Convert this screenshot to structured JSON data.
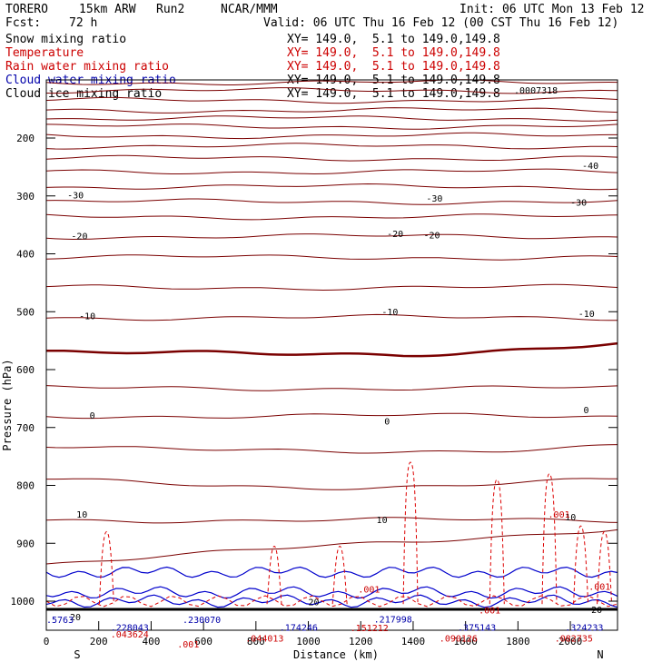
{
  "header": {
    "model": "TORERO",
    "resolution": "15km ARW",
    "run": "Run2",
    "org": "NCAR/MMM",
    "init": "Init: 06 UTC Mon 13 Feb 12",
    "fcst_label": "Fcst:",
    "fcst_value": "72 h",
    "valid": "Valid: 06 UTC Thu 16 Feb 12 (00 CST Thu 16 Feb 12)"
  },
  "fields": [
    {
      "name": "Snow mixing ratio",
      "xy": "XY= 149.0,  5.1 to 149.0,149.8",
      "color": "#000000"
    },
    {
      "name": "Temperature",
      "xy": "XY= 149.0,  5.1 to 149.0,149.8",
      "color": "#cc0000"
    },
    {
      "name": "Rain water mixing ratio",
      "xy": "XY= 149.0,  5.1 to 149.0,149.8",
      "color": "#cc0000"
    },
    {
      "name": "Cloud water mixing ratio",
      "xy": "XY= 149.0,  5.1 to 149.0,149.8",
      "color": "#0000aa"
    },
    {
      "name": "Cloud ice mixing ratio",
      "xy": "XY= 149.0,  5.1 to 149.0,149.8",
      "color": "#000000"
    }
  ],
  "chart_data": {
    "type": "cross-section",
    "xlabel": "Distance (km)",
    "ylabel": "Pressure (hPa)",
    "xlim": [
      0,
      2180
    ],
    "ylim": [
      100,
      1050
    ],
    "x_ticks": [
      0,
      200,
      400,
      600,
      800,
      1000,
      1200,
      1400,
      1600,
      1800,
      2000
    ],
    "y_ticks": [
      200,
      300,
      400,
      500,
      600,
      700,
      800,
      900,
      1000
    ],
    "left_end_label": "S",
    "right_end_label": "N",
    "temperature_contour_labels": [
      {
        "text": "-40",
        "x": 2045,
        "p": 253
      },
      {
        "text": "-30",
        "x": 80,
        "p": 304
      },
      {
        "text": "-30",
        "x": 1450,
        "p": 310
      },
      {
        "text": "-30",
        "x": 2000,
        "p": 317
      },
      {
        "text": "-20",
        "x": 95,
        "p": 375
      },
      {
        "text": "-20",
        "x": 1300,
        "p": 371
      },
      {
        "text": "-20",
        "x": 1440,
        "p": 373
      },
      {
        "text": "-10",
        "x": 125,
        "p": 513
      },
      {
        "text": "-10",
        "x": 1280,
        "p": 506
      },
      {
        "text": "-10",
        "x": 2030,
        "p": 509
      },
      {
        "text": "0",
        "x": 165,
        "p": 685
      },
      {
        "text": "0",
        "x": 1290,
        "p": 695
      },
      {
        "text": "0",
        "x": 2050,
        "p": 675
      },
      {
        "text": "10",
        "x": 115,
        "p": 856
      },
      {
        "text": "10",
        "x": 1260,
        "p": 865
      },
      {
        "text": "10",
        "x": 1980,
        "p": 860
      },
      {
        "text": "20",
        "x": 1000,
        "p": 1007
      },
      {
        "text": "20",
        "x": 2080,
        "p": 1020
      },
      {
        "text": "20",
        "x": 90,
        "p": 1033
      }
    ],
    "rain_labels": [
      {
        "text": ".001",
        "x": 1190,
        "p": 985
      },
      {
        "text": ".001",
        "x": 1650,
        "p": 1021
      },
      {
        "text": ".001",
        "x": 1915,
        "p": 856
      },
      {
        "text": ".001",
        "x": 2070,
        "p": 980
      },
      {
        "text": ".001",
        "x": 500,
        "p": 1080
      }
    ],
    "cloud_water_labels": [
      {
        "text": ".5763",
        "x": 0,
        "p": 1038
      },
      {
        "text": ".228043",
        "x": 245,
        "p": 1051
      },
      {
        "text": ".230070",
        "x": 520,
        "p": 1038
      },
      {
        "text": ".174246",
        "x": 890,
        "p": 1051
      },
      {
        "text": ".217998",
        "x": 1250,
        "p": 1037
      },
      {
        "text": ".375143",
        "x": 1570,
        "p": 1051
      },
      {
        "text": ".324233",
        "x": 1980,
        "p": 1051
      }
    ],
    "rain_value_labels": [
      {
        "text": ".043624",
        "x": 245,
        "p": 1063
      },
      {
        "text": ".044013",
        "x": 760,
        "p": 1070
      },
      {
        "text": ".151212",
        "x": 1160,
        "p": 1052
      },
      {
        "text": ".090126",
        "x": 1500,
        "p": 1070
      },
      {
        "text": ".082735",
        "x": 1940,
        "p": 1070
      }
    ],
    "cloud_ice_max_label": {
      "text": ".0007318",
      "x": 1785,
      "p": 128
    }
  }
}
